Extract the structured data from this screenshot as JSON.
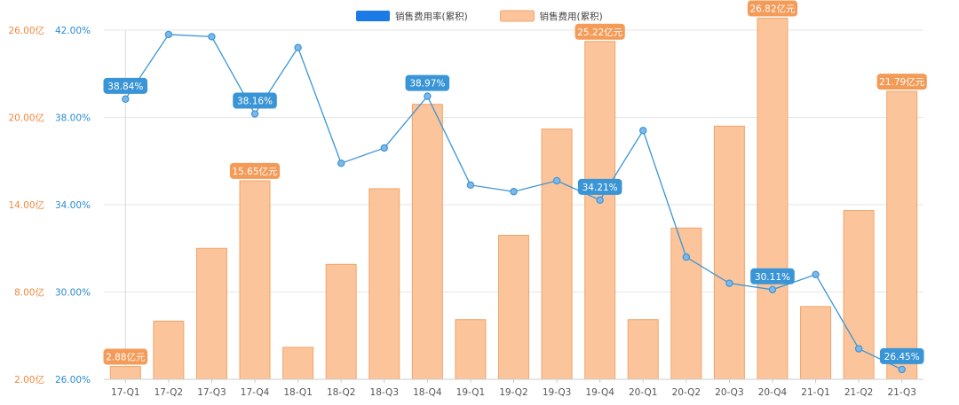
{
  "colors": {
    "bar_fill": "#fbc49b",
    "bar_stroke": "#f0a56a",
    "bar_label_bg": "#f49b58",
    "line": "#3a95d6",
    "line_label_bg": "#3a95d6",
    "legend_line_swatch": "#1a7be6",
    "grid": "#e6e6e6",
    "left_axis_text": "#f0883e",
    "right_axis_text": "#2b8ad0"
  },
  "chart_data": {
    "type": "bar+line",
    "categories": [
      "17-Q1",
      "17-Q2",
      "17-Q3",
      "17-Q4",
      "18-Q1",
      "18-Q2",
      "18-Q3",
      "18-Q4",
      "19-Q1",
      "19-Q2",
      "19-Q3",
      "19-Q4",
      "20-Q1",
      "20-Q2",
      "20-Q3",
      "20-Q4",
      "21-Q1",
      "21-Q2",
      "21-Q3"
    ],
    "legend": {
      "placement": "top-center",
      "items": [
        {
          "label": "销售费用率(累积)",
          "kind": "line"
        },
        {
          "label": "销售费用(累积)",
          "kind": "bar"
        }
      ]
    },
    "left_axis": {
      "unit": "亿",
      "ticks": [
        "2.00亿",
        "8.00亿",
        "14.00亿",
        "20.00亿",
        "26.00亿"
      ],
      "ylim": [
        2,
        26
      ]
    },
    "right_axis": {
      "unit": "%",
      "ticks": [
        "26.00%",
        "30.00%",
        "34.00%",
        "38.00%",
        "42.00%"
      ],
      "ylim": [
        26,
        42
      ]
    },
    "grid": true,
    "series": [
      {
        "name": "销售费用(累积)",
        "type": "bar",
        "axis": "left",
        "values": [
          2.88,
          6.0,
          11.0,
          15.65,
          4.2,
          9.9,
          15.1,
          20.9,
          6.1,
          11.9,
          19.2,
          25.22,
          6.1,
          12.4,
          19.4,
          26.82,
          7.0,
          13.6,
          21.79
        ],
        "labels": [
          {
            "index": 0,
            "text": "2.88亿元"
          },
          {
            "index": 3,
            "text": "15.65亿元"
          },
          {
            "index": 11,
            "text": "25.22亿元"
          },
          {
            "index": 15,
            "text": "26.82亿元"
          },
          {
            "index": 18,
            "text": "21.79亿元"
          }
        ]
      },
      {
        "name": "销售费用率(累积)",
        "type": "line",
        "axis": "right",
        "values": [
          38.84,
          41.8,
          41.7,
          38.16,
          41.2,
          35.9,
          36.6,
          38.97,
          34.9,
          34.6,
          35.1,
          34.21,
          37.4,
          31.6,
          30.4,
          30.11,
          30.8,
          27.4,
          26.45
        ],
        "labels": [
          {
            "index": 0,
            "text": "38.84%"
          },
          {
            "index": 3,
            "text": "38.16%"
          },
          {
            "index": 7,
            "text": "38.97%"
          },
          {
            "index": 11,
            "text": "34.21%"
          },
          {
            "index": 15,
            "text": "30.11%"
          },
          {
            "index": 18,
            "text": "26.45%"
          }
        ]
      }
    ]
  }
}
